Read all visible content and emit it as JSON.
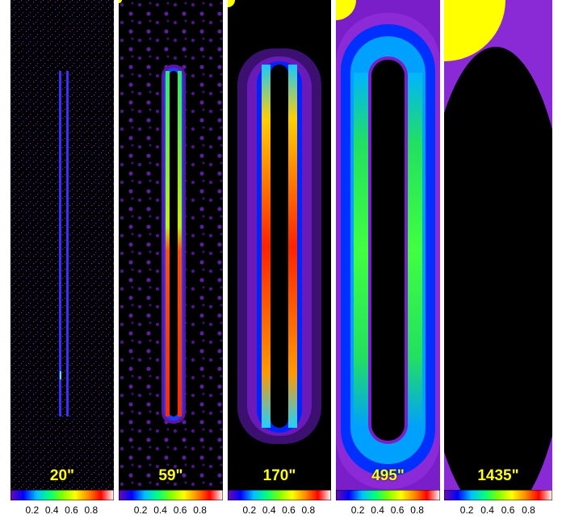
{
  "panels": [
    {
      "label": "20\""
    },
    {
      "label": "59\""
    },
    {
      "label": "170\""
    },
    {
      "label": "495\""
    },
    {
      "label": "1435\""
    }
  ],
  "colorbar": {
    "ticks": [
      "0.2",
      "0.4",
      "0.6",
      "0.8"
    ],
    "gradient_colors": [
      "#6a0dad",
      "#0000ff",
      "#00bfff",
      "#00ff7f",
      "#7fff00",
      "#ffff00",
      "#ff8c00",
      "#ff0000",
      "#ffffff"
    ]
  },
  "label_color": "#ffff1a",
  "disk_color": "#ffff00"
}
